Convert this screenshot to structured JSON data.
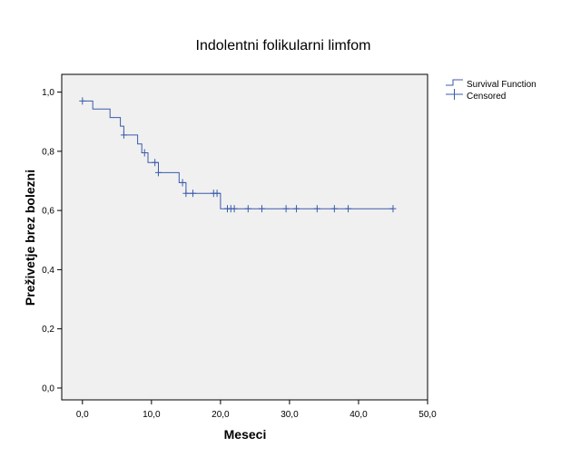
{
  "chart_data": {
    "type": "line",
    "title": "Indolentni folikularni limfom",
    "xlabel": "Meseci",
    "ylabel": "Preživetje brez bolezni",
    "xlim": [
      -3,
      50
    ],
    "ylim": [
      -0.04,
      1.06
    ],
    "xticks": [
      0,
      10,
      20,
      30,
      40,
      50
    ],
    "xtick_labels": [
      "0,0",
      "10,0",
      "20,0",
      "30,0",
      "40,0",
      "50,0"
    ],
    "yticks": [
      0.0,
      0.2,
      0.4,
      0.6,
      0.8,
      1.0
    ],
    "ytick_labels": [
      "0,0",
      "0,2",
      "0,4",
      "0,6",
      "0,8",
      "1,0"
    ],
    "grid": false,
    "legend_position": "top-right-outside",
    "colors": {
      "line": "#3a5bab",
      "plot_bg": "#f0f0f0",
      "axis": "#000000"
    },
    "series": [
      {
        "name": "Survival Function",
        "style": "step",
        "points": [
          [
            0,
            0.97
          ],
          [
            1.5,
            0.97
          ],
          [
            1.5,
            0.943
          ],
          [
            4,
            0.943
          ],
          [
            4,
            0.914
          ],
          [
            5.5,
            0.914
          ],
          [
            5.5,
            0.885
          ],
          [
            6,
            0.885
          ],
          [
            6,
            0.855
          ],
          [
            8,
            0.855
          ],
          [
            8,
            0.825
          ],
          [
            8.6,
            0.825
          ],
          [
            8.6,
            0.795
          ],
          [
            9.5,
            0.795
          ],
          [
            9.5,
            0.762
          ],
          [
            11,
            0.762
          ],
          [
            11,
            0.728
          ],
          [
            14,
            0.728
          ],
          [
            14,
            0.694
          ],
          [
            15,
            0.694
          ],
          [
            15,
            0.658
          ],
          [
            20,
            0.658
          ],
          [
            20,
            0.606
          ],
          [
            45,
            0.606
          ]
        ]
      },
      {
        "name": "Censored",
        "style": "marker",
        "points": [
          [
            0,
            0.97
          ],
          [
            6,
            0.855
          ],
          [
            9,
            0.795
          ],
          [
            10.5,
            0.762
          ],
          [
            11,
            0.728
          ],
          [
            14.5,
            0.694
          ],
          [
            15,
            0.658
          ],
          [
            16,
            0.658
          ],
          [
            19,
            0.658
          ],
          [
            19.5,
            0.658
          ],
          [
            21,
            0.606
          ],
          [
            21.5,
            0.606
          ],
          [
            22,
            0.606
          ],
          [
            24,
            0.606
          ],
          [
            26,
            0.606
          ],
          [
            29.5,
            0.606
          ],
          [
            31,
            0.606
          ],
          [
            34,
            0.606
          ],
          [
            36.5,
            0.606
          ],
          [
            38.5,
            0.606
          ],
          [
            45,
            0.606
          ]
        ]
      }
    ]
  }
}
